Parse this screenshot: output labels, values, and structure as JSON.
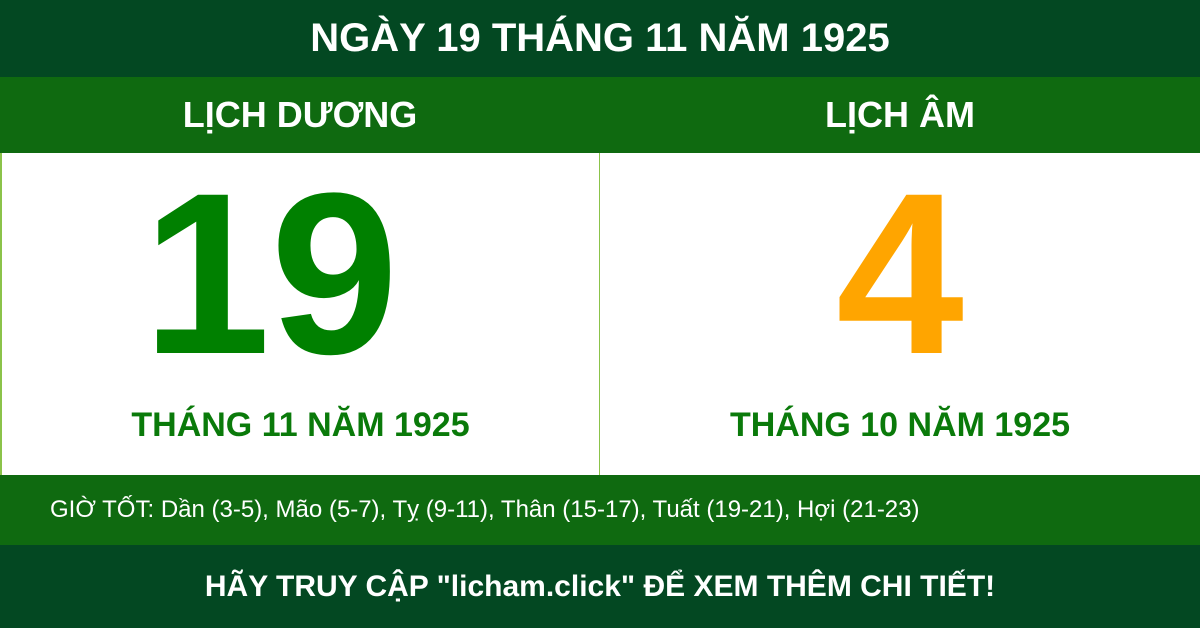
{
  "title": "NGÀY 19 THÁNG 11 NĂM 1925",
  "solar": {
    "heading": "LỊCH DƯƠNG",
    "day": "19",
    "month_year": "THÁNG 11 NĂM 1925"
  },
  "lunar": {
    "heading": "LỊCH ÂM",
    "day": "4",
    "month_year": "THÁNG 10 NĂM 1925"
  },
  "good_hours": "GIỜ TỐT: Dần (3-5), Mão (5-7), Tỵ (9-11), Thân (15-17), Tuất (19-21), Hợi (21-23)",
  "footer": "HÃY TRUY CẬP \"licham.click\" ĐỂ XEM THÊM CHI TIẾT!",
  "colors": {
    "dark_green": "#034822",
    "green_band": "#0f6a10",
    "solar_day": "#008000",
    "lunar_day": "#ffa500"
  }
}
